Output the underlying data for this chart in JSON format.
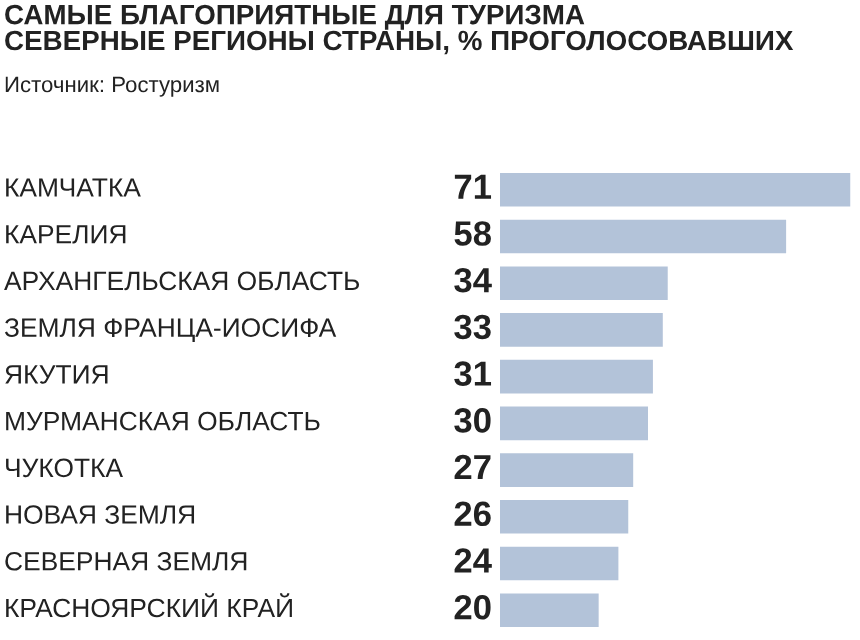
{
  "chart_data": {
    "type": "bar",
    "orientation": "horizontal",
    "title": "САМЫЕ БЛАГОПРИЯТНЫЕ ДЛЯ ТУРИЗМА\nСЕВЕРНЫЕ РЕГИОНЫ СТРАНЫ, % ПРОГОЛОСОВАВШИХ",
    "annotations": [
      "Источник: Ростуризм"
    ],
    "categories": [
      "КАМЧАТКА",
      "КАРЕЛИЯ",
      "АРХАНГЕЛЬСКАЯ ОБЛАСТЬ",
      "ЗЕМЛЯ ФРАНЦА-ИОСИФА",
      "ЯКУТИЯ",
      "МУРМАНСКАЯ ОБЛАСТЬ",
      "ЧУКОТКА",
      "НОВАЯ ЗЕМЛЯ",
      "СЕВЕРНАЯ ЗЕМЛЯ",
      "КРАСНОЯРСКИЙ КРАЙ"
    ],
    "values": [
      71,
      58,
      34,
      33,
      31,
      30,
      27,
      26,
      24,
      20
    ],
    "color": "#b3c3d9",
    "data_labels": true
  }
}
